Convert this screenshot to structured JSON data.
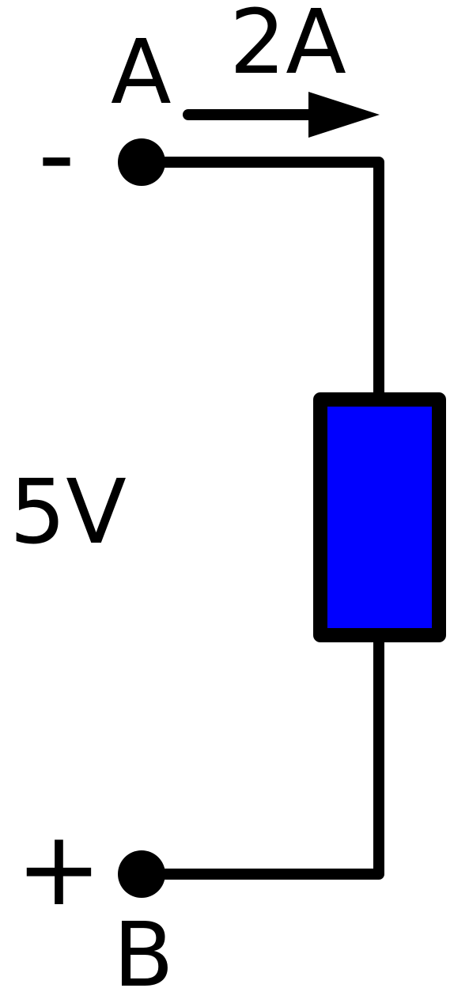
{
  "terminals": {
    "top": {
      "name": "A",
      "polarity": "-"
    },
    "bottom": {
      "name": "B",
      "polarity": "+"
    }
  },
  "current": {
    "label": "2A"
  },
  "voltage": {
    "label": "5V"
  },
  "colors": {
    "resistor_fill": "#0000ff",
    "stroke": "#000000",
    "background": "#ffffff"
  }
}
